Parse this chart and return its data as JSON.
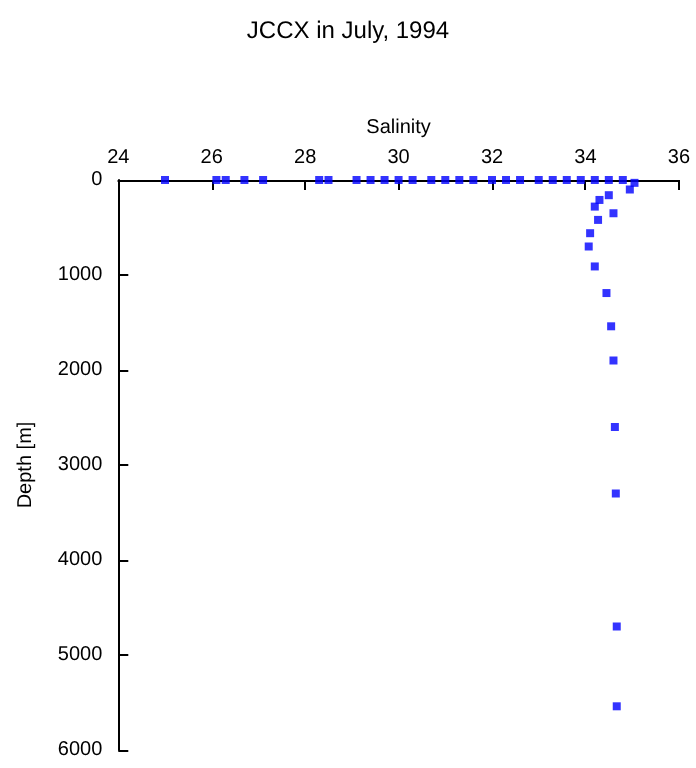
{
  "chart_data": {
    "type": "scatter",
    "title": "JCCX in July, 1994",
    "xlabel": "Salinity",
    "ylabel": "Depth [m]",
    "series": [
      {
        "color": "#0000ff",
        "x": [
          25.0,
          26.1,
          26.3,
          26.7,
          27.1,
          28.3,
          28.5,
          29.1,
          29.4,
          29.7,
          30.0,
          30.3,
          30.7,
          31.0,
          31.3,
          31.6,
          32.0,
          32.3,
          32.6,
          33.0,
          33.3,
          33.6,
          33.9,
          34.2,
          34.5,
          34.8,
          35.05,
          34.95,
          34.5,
          34.3,
          34.2,
          34.6,
          34.27,
          34.1,
          34.07,
          34.2,
          34.45,
          34.55,
          34.6,
          34.63,
          34.65,
          34.67,
          34.67
        ],
        "values": [
          0,
          0,
          0,
          0,
          0,
          0,
          0,
          0,
          0,
          0,
          0,
          0,
          0,
          0,
          0,
          0,
          0,
          0,
          0,
          0,
          0,
          0,
          0,
          0,
          0,
          0,
          30,
          100,
          160,
          210,
          280,
          350,
          420,
          560,
          700,
          910,
          1190,
          1540,
          1900,
          2600,
          3300,
          4700,
          5540
        ]
      }
    ],
    "xlim": [
      24,
      36
    ],
    "xticks": [
      24,
      26,
      28,
      30,
      32,
      34,
      36
    ],
    "ylim": [
      6000,
      0
    ],
    "yticks": [
      0,
      1000,
      2000,
      3000,
      4000,
      5000,
      6000
    ],
    "grid": false,
    "marker": "square"
  }
}
